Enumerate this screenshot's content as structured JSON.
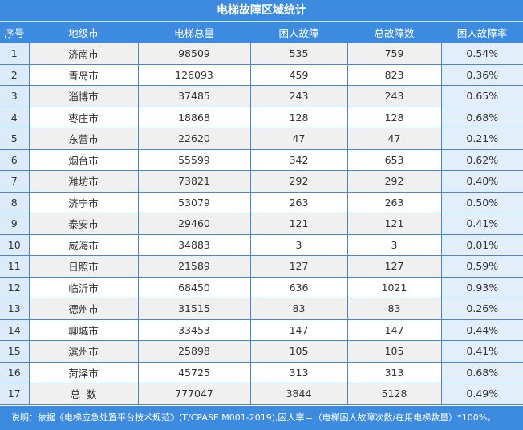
{
  "title": "电梯故障区域统计",
  "headers": [
    "序号",
    "地级市",
    "电梯总量",
    "困人故障",
    "总故障数",
    "困人故障率"
  ],
  "rows": [
    {
      "seq": "1",
      "city": "济南市",
      "total": "98509",
      "trapped": "535",
      "faults": "759",
      "rate": "0.54%"
    },
    {
      "seq": "2",
      "city": "青岛市",
      "total": "126093",
      "trapped": "459",
      "faults": "823",
      "rate": "0.36%"
    },
    {
      "seq": "3",
      "city": "淄博市",
      "total": "37485",
      "trapped": "243",
      "faults": "243",
      "rate": "0.65%"
    },
    {
      "seq": "4",
      "city": "枣庄市",
      "total": "18868",
      "trapped": "128",
      "faults": "128",
      "rate": "0.68%"
    },
    {
      "seq": "5",
      "city": "东营市",
      "total": "22620",
      "trapped": "47",
      "faults": "47",
      "rate": "0.21%"
    },
    {
      "seq": "6",
      "city": "烟台市",
      "total": "55599",
      "trapped": "342",
      "faults": "653",
      "rate": "0.62%"
    },
    {
      "seq": "7",
      "city": "潍坊市",
      "total": "73821",
      "trapped": "292",
      "faults": "292",
      "rate": "0.40%"
    },
    {
      "seq": "8",
      "city": "济宁市",
      "total": "53079",
      "trapped": "263",
      "faults": "263",
      "rate": "0.50%"
    },
    {
      "seq": "9",
      "city": "泰安市",
      "total": "29460",
      "trapped": "121",
      "faults": "121",
      "rate": "0.41%"
    },
    {
      "seq": "10",
      "city": "威海市",
      "total": "34883",
      "trapped": "3",
      "faults": "3",
      "rate": "0.01%"
    },
    {
      "seq": "11",
      "city": "日照市",
      "total": "21589",
      "trapped": "127",
      "faults": "127",
      "rate": "0.59%"
    },
    {
      "seq": "12",
      "city": "临沂市",
      "total": "68450",
      "trapped": "636",
      "faults": "1021",
      "rate": "0.93%"
    },
    {
      "seq": "13",
      "city": "德州市",
      "total": "31515",
      "trapped": "83",
      "faults": "83",
      "rate": "0.26%"
    },
    {
      "seq": "14",
      "city": "聊城市",
      "total": "33453",
      "trapped": "147",
      "faults": "147",
      "rate": "0.44%"
    },
    {
      "seq": "15",
      "city": "滨州市",
      "total": "25898",
      "trapped": "105",
      "faults": "105",
      "rate": "0.41%"
    },
    {
      "seq": "16",
      "city": "菏泽市",
      "total": "45725",
      "trapped": "313",
      "faults": "313",
      "rate": "0.68%"
    },
    {
      "seq": "17",
      "city": "总  数",
      "total": "777047",
      "trapped": "3844",
      "faults": "5128",
      "rate": "0.49%"
    }
  ],
  "note": "说明：依据《电梯应急处置平台技术规范》(T/CPASE M001-2019),困人率＝（电梯困人故障次数/在用电梯数量）*100%。",
  "colors": {
    "header_bg": "#3d8be0",
    "seq_col_bg": "#dcebfa",
    "rate_col_bg": "#e3eefb",
    "stripe": "#f0f0f0",
    "border": "#4a86cf"
  }
}
